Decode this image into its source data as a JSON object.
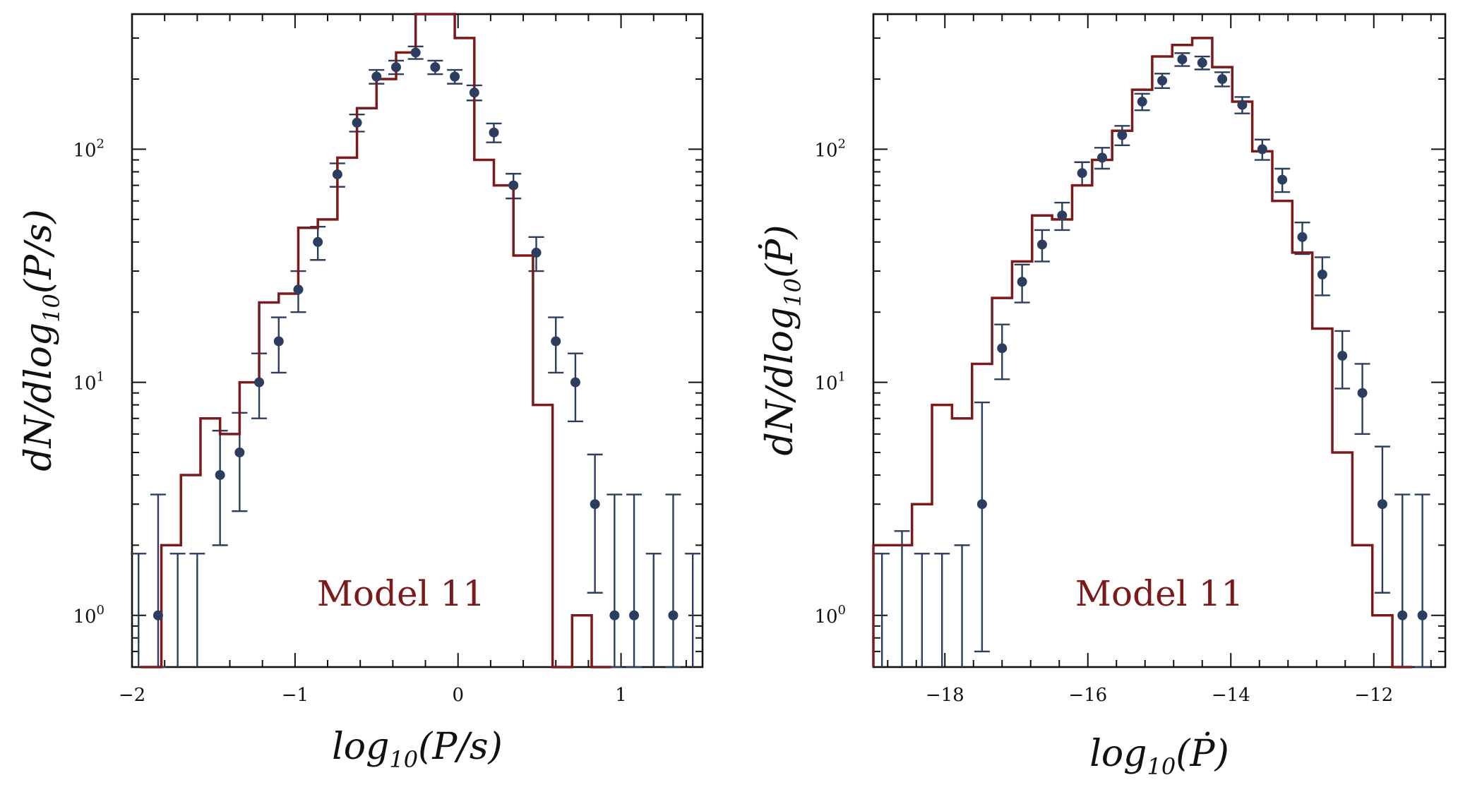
{
  "chart_data": [
    {
      "type": "histogram-with-errorbars",
      "xscale": "linear",
      "yscale": "log",
      "xlim": [
        -2.0,
        1.5
      ],
      "ylim": [
        0.6,
        380
      ],
      "xticks": [
        -2,
        -1,
        0,
        1
      ],
      "xtick_labels": [
        "−2",
        "−1",
        "0",
        "1"
      ],
      "yticks": [
        1,
        10,
        100
      ],
      "ytick_labels": [
        "10",
        "10",
        "10"
      ],
      "ytick_exponents": [
        "0",
        "1",
        "2"
      ],
      "xlabel": {
        "base": "log",
        "sub": "10",
        "arg": "(P/s)"
      },
      "ylabel": {
        "base": "dN/dlog",
        "sub": "10",
        "arg": "(P/s)"
      },
      "annotation": {
        "text": "Model 11",
        "at": [
          -0.35,
          1.1
        ]
      },
      "model_color": "#7a1a1a",
      "data_color": "#2c3e60",
      "model": {
        "name": "Model 11",
        "edges": [
          -1.95,
          -1.82,
          -1.7,
          -1.58,
          -1.46,
          -1.34,
          -1.22,
          -1.1,
          -0.98,
          -0.86,
          -0.74,
          -0.62,
          -0.5,
          -0.38,
          -0.26,
          -0.14,
          -0.02,
          0.1,
          0.22,
          0.34,
          0.46,
          0.58,
          0.7,
          0.82
        ],
        "counts": [
          0.5,
          2,
          4,
          7,
          6,
          10,
          22,
          24,
          46,
          50,
          92,
          150,
          200,
          260,
          430,
          440,
          300,
          90,
          70,
          35,
          8,
          0.5,
          1,
          0.5
        ]
      },
      "observed": {
        "name": "Observed",
        "x": [
          -1.96,
          -1.84,
          -1.72,
          -1.6,
          -1.46,
          -1.34,
          -1.22,
          -1.1,
          -0.98,
          -0.86,
          -0.74,
          -0.62,
          -0.5,
          -0.38,
          -0.26,
          -0.14,
          -0.02,
          0.1,
          0.22,
          0.34,
          0.48,
          0.6,
          0.72,
          0.84,
          0.96,
          1.08,
          1.2,
          1.32,
          1.44
        ],
        "y": [
          0,
          1,
          0,
          0,
          4,
          5,
          10,
          15,
          25,
          40,
          78,
          130,
          205,
          225,
          260,
          225,
          205,
          175,
          118,
          70,
          36,
          15,
          10,
          3,
          1,
          1,
          0,
          1,
          0
        ],
        "err_low": [
          0,
          0.5,
          0,
          0,
          2,
          2.2,
          3,
          4,
          5,
          6.5,
          9,
          11,
          14,
          15,
          16,
          15,
          14,
          13,
          11,
          8.5,
          6,
          4,
          3.2,
          1.75,
          0.5,
          0.5,
          0,
          0.5,
          0
        ],
        "err_high": [
          1.84,
          2.3,
          1.84,
          1.84,
          2.2,
          2.4,
          3.3,
          4,
          5,
          6.5,
          9,
          11,
          14,
          15,
          16,
          15,
          14,
          13,
          11,
          8.5,
          6,
          4,
          3.3,
          1.9,
          2.3,
          2.3,
          1.84,
          2.3,
          1.84
        ]
      }
    },
    {
      "type": "histogram-with-errorbars",
      "xscale": "linear",
      "yscale": "log",
      "xlim": [
        -19.0,
        -11.0
      ],
      "ylim": [
        0.6,
        380
      ],
      "xticks": [
        -18,
        -16,
        -14,
        -12
      ],
      "xtick_labels": [
        "−18",
        "−16",
        "−14",
        "−12"
      ],
      "yticks": [
        1,
        10,
        100
      ],
      "ytick_labels": [
        "10",
        "10",
        "10"
      ],
      "ytick_exponents": [
        "0",
        "1",
        "2"
      ],
      "xlabel": {
        "base": "log",
        "sub": "10",
        "arg": "(Ṗ)"
      },
      "ylabel": {
        "base": "dN/dlog",
        "sub": "10",
        "arg": "(Ṗ)"
      },
      "annotation": {
        "text": "Model 11",
        "at": [
          -15.0,
          1.1
        ]
      },
      "model_color": "#7a1a1a",
      "data_color": "#2c3e60",
      "model": {
        "name": "Model 11",
        "edges": [
          -19.0,
          -18.46,
          -18.18,
          -17.9,
          -17.62,
          -17.34,
          -17.06,
          -16.78,
          -16.5,
          -16.22,
          -15.94,
          -15.66,
          -15.38,
          -15.1,
          -14.82,
          -14.54,
          -14.26,
          -13.98,
          -13.7,
          -13.42,
          -13.14,
          -12.86,
          -12.58,
          -12.3,
          -12.02,
          -11.74
        ],
        "counts": [
          2,
          3,
          8,
          7,
          12,
          23,
          33,
          52,
          50,
          70,
          90,
          120,
          180,
          250,
          280,
          300,
          225,
          160,
          98,
          60,
          36,
          17,
          5,
          2,
          1,
          0.4
        ]
      },
      "observed": {
        "name": "Observed",
        "x": [
          -18.88,
          -18.6,
          -18.32,
          -18.04,
          -17.76,
          -17.48,
          -17.2,
          -16.92,
          -16.64,
          -16.36,
          -16.08,
          -15.8,
          -15.52,
          -15.24,
          -14.96,
          -14.68,
          -14.4,
          -14.12,
          -13.84,
          -13.56,
          -13.28,
          -13.0,
          -12.72,
          -12.44,
          -12.16,
          -11.88,
          -11.6,
          -11.32
        ],
        "y": [
          0,
          0,
          0,
          0,
          0,
          3,
          14,
          27,
          39,
          52,
          79,
          92,
          115,
          160,
          197,
          243,
          235,
          200,
          155,
          100,
          74,
          42,
          29,
          13,
          9,
          3,
          1,
          1
        ],
        "err_low": [
          0,
          0,
          0,
          0,
          0,
          2.3,
          3.7,
          5,
          6,
          7,
          9,
          9.5,
          11,
          13,
          14,
          15.5,
          15,
          14,
          12.5,
          10,
          8.5,
          6.5,
          5.4,
          3.6,
          3,
          1.75,
          0.5,
          0.5
        ],
        "err_high": [
          1.84,
          2.3,
          1.84,
          1.84,
          2.0,
          5.2,
          3.7,
          5,
          6,
          7,
          9,
          9.5,
          11,
          13,
          14,
          15.5,
          15,
          14,
          12.5,
          10,
          8.5,
          6.5,
          5.4,
          3.6,
          3,
          2.3,
          2.3,
          2.3
        ]
      }
    }
  ]
}
